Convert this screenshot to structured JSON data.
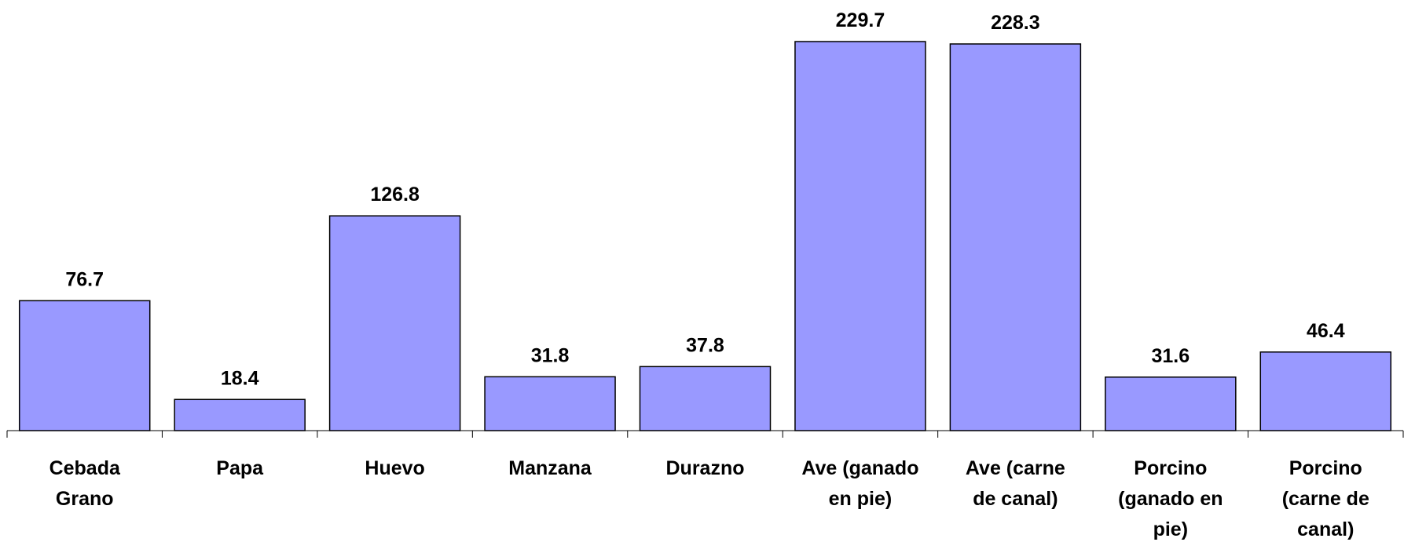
{
  "chart_data": {
    "type": "bar",
    "categories": [
      "Cebada Grano",
      "Papa",
      "Huevo",
      "Manzana",
      "Durazno",
      "Ave (ganado en pie)",
      "Ave (carne de canal)",
      "Porcino (ganado en pie)",
      "Porcino (carne de canal)"
    ],
    "values": [
      76.7,
      18.4,
      126.8,
      31.8,
      37.8,
      229.7,
      228.3,
      31.6,
      46.4
    ],
    "color": "#9999ff"
  }
}
